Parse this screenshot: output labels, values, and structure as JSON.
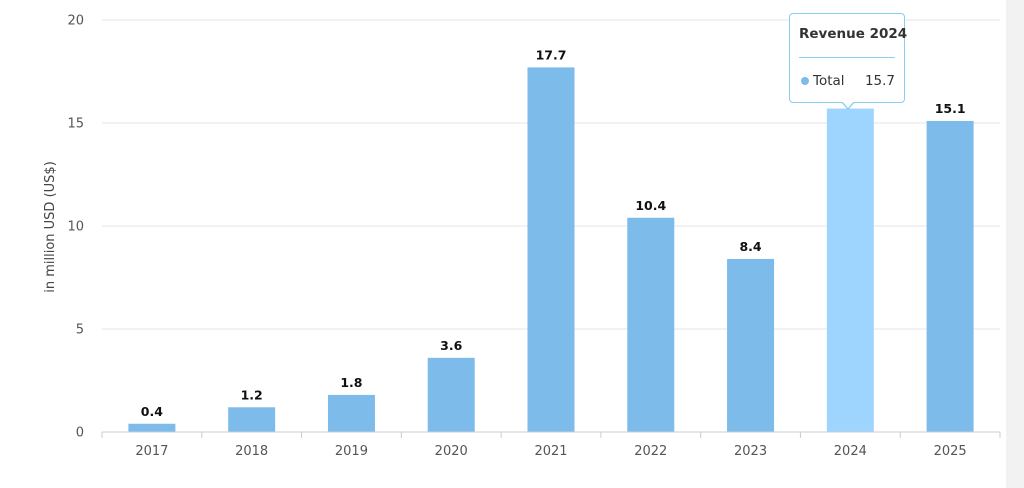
{
  "chart_data": {
    "type": "bar",
    "categories": [
      "2017",
      "2018",
      "2019",
      "2020",
      "2021",
      "2022",
      "2023",
      "2024",
      "2025"
    ],
    "series": [
      {
        "name": "Total",
        "values": [
          0.4,
          1.2,
          1.8,
          3.6,
          17.7,
          10.4,
          8.4,
          15.7,
          15.1
        ]
      }
    ],
    "data_labels": [
      "0.4",
      "1.2",
      "1.8",
      "3.6",
      "17.7",
      "10.4",
      "",
      "",
      "15.1"
    ],
    "data_labels_full": [
      "0.4",
      "1.2",
      "1.8",
      "3.6",
      "17.7",
      "10.4",
      "8.4",
      "",
      "15.1"
    ],
    "ylabel": "in million USD (US$)",
    "xlabel": "",
    "ylim": [
      0,
      20
    ],
    "yticks": [
      "0",
      "5",
      "10",
      "15",
      "20"
    ],
    "grid": true,
    "bar_color": "#7dbbea",
    "highlight_color": "#9dd5ff",
    "highlighted_category": "2024",
    "tooltip": {
      "title": "Revenue 2024",
      "series": "Total",
      "value": "15.7"
    }
  }
}
